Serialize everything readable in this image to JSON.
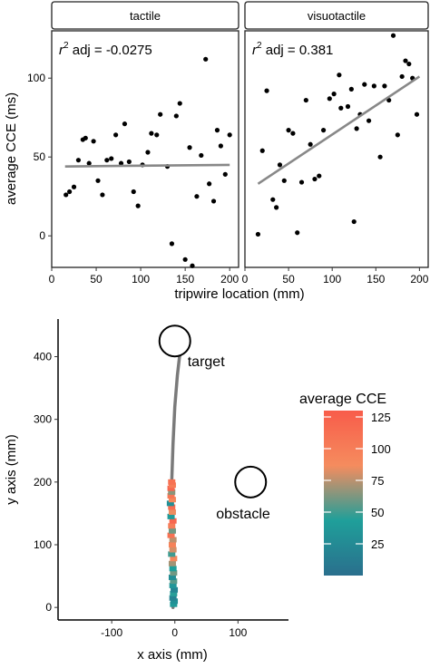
{
  "chart_data": [
    {
      "type": "scatter",
      "facet": "tactile",
      "annotation": {
        "r2_prefix": "r",
        "r2_sup": "2",
        "r2_suffix": " adj = -0.0275"
      },
      "xlabel": "tripwire location (mm)",
      "ylabel": "average CCE (ms)",
      "xlim": [
        0,
        210
      ],
      "ylim": [
        -20,
        130
      ],
      "xticks": [
        0,
        50,
        100,
        150,
        200
      ],
      "yticks": [
        0,
        50,
        100
      ],
      "points": [
        [
          16,
          26
        ],
        [
          20,
          28
        ],
        [
          25,
          31
        ],
        [
          30,
          48
        ],
        [
          35,
          61
        ],
        [
          38,
          62
        ],
        [
          42,
          46
        ],
        [
          47,
          60
        ],
        [
          52,
          35
        ],
        [
          57,
          26
        ],
        [
          62,
          48
        ],
        [
          67,
          49
        ],
        [
          72,
          64
        ],
        [
          78,
          46
        ],
        [
          82,
          71
        ],
        [
          87,
          47
        ],
        [
          92,
          28
        ],
        [
          97,
          19
        ],
        [
          102,
          45
        ],
        [
          108,
          53
        ],
        [
          112,
          65
        ],
        [
          118,
          64
        ],
        [
          122,
          77
        ],
        [
          130,
          44
        ],
        [
          135,
          -5
        ],
        [
          140,
          76
        ],
        [
          144,
          84
        ],
        [
          150,
          -15
        ],
        [
          155,
          56
        ],
        [
          158,
          -19
        ],
        [
          163,
          25
        ],
        [
          168,
          51
        ],
        [
          173,
          112
        ],
        [
          177,
          33
        ],
        [
          182,
          22
        ],
        [
          186,
          67
        ],
        [
          190,
          57
        ],
        [
          195,
          39
        ],
        [
          200,
          64
        ]
      ],
      "fit": [
        [
          15,
          44
        ],
        [
          200,
          45
        ]
      ]
    },
    {
      "type": "scatter",
      "facet": "visuotactile",
      "annotation": {
        "r2_prefix": "r",
        "r2_sup": "2",
        "r2_suffix": " adj = 0.381"
      },
      "xlabel": "tripwire location (mm)",
      "xlim": [
        0,
        210
      ],
      "ylim": [
        -20,
        130
      ],
      "xticks": [
        0,
        50,
        100,
        150,
        200
      ],
      "points": [
        [
          15,
          1
        ],
        [
          20,
          54
        ],
        [
          25,
          92
        ],
        [
          32,
          23
        ],
        [
          36,
          18
        ],
        [
          40,
          45
        ],
        [
          45,
          35
        ],
        [
          50,
          67
        ],
        [
          55,
          65
        ],
        [
          60,
          2
        ],
        [
          65,
          34
        ],
        [
          70,
          86
        ],
        [
          75,
          58
        ],
        [
          80,
          36
        ],
        [
          85,
          38
        ],
        [
          90,
          67
        ],
        [
          97,
          87
        ],
        [
          102,
          90
        ],
        [
          108,
          102
        ],
        [
          110,
          81
        ],
        [
          118,
          82
        ],
        [
          122,
          93
        ],
        [
          125,
          9
        ],
        [
          128,
          68
        ],
        [
          132,
          77
        ],
        [
          137,
          96
        ],
        [
          142,
          73
        ],
        [
          148,
          95
        ],
        [
          155,
          50
        ],
        [
          160,
          95
        ],
        [
          165,
          86
        ],
        [
          170,
          127
        ],
        [
          175,
          64
        ],
        [
          180,
          101
        ],
        [
          184,
          111
        ],
        [
          188,
          109
        ],
        [
          192,
          100
        ],
        [
          197,
          77
        ]
      ],
      "fit": [
        [
          15,
          33
        ],
        [
          200,
          101
        ]
      ]
    },
    {
      "type": "line",
      "xlabel": "x axis (mm)",
      "ylabel": "y axis (mm)",
      "xlim": [
        -185,
        180
      ],
      "ylim": [
        -20,
        460
      ],
      "xticks": [
        -100,
        0,
        100
      ],
      "yticks": [
        0,
        100,
        200,
        300,
        400
      ],
      "legend": {
        "title": "average CCE",
        "ticks": [
          25,
          50,
          75,
          100,
          125
        ],
        "range": [
          0,
          130
        ],
        "colors": [
          "#2a6f8d",
          "#1f9f9a",
          "#f58c5e",
          "#f85c4a"
        ]
      },
      "target": {
        "label": "target",
        "x": 0,
        "y": 425,
        "r": 17
      },
      "obstacle": {
        "label": "obstacle",
        "x": 120,
        "y": 200,
        "r": 17
      },
      "trajectory_line": [
        [
          -3,
          0
        ],
        [
          -4,
          100
        ],
        [
          -5,
          200
        ],
        [
          -3,
          260
        ],
        [
          0,
          320
        ],
        [
          4,
          370
        ],
        [
          8,
          405
        ]
      ],
      "trajectory_points": [
        [
          -2,
          5,
          40
        ],
        [
          -1,
          10,
          30
        ],
        [
          -3,
          15,
          18
        ],
        [
          -2,
          22,
          45
        ],
        [
          -1,
          28,
          20
        ],
        [
          -3,
          35,
          35
        ],
        [
          -2,
          42,
          55
        ],
        [
          -4,
          48,
          28
        ],
        [
          -2,
          55,
          60
        ],
        [
          -3,
          62,
          42
        ],
        [
          -4,
          70,
          70
        ],
        [
          -2,
          78,
          90
        ],
        [
          -5,
          85,
          50
        ],
        [
          -3,
          92,
          80
        ],
        [
          -4,
          100,
          95
        ],
        [
          -3,
          108,
          75
        ],
        [
          -6,
          115,
          110
        ],
        [
          -4,
          122,
          60
        ],
        [
          -5,
          130,
          100
        ],
        [
          -3,
          138,
          120
        ],
        [
          -6,
          145,
          40
        ],
        [
          -4,
          152,
          85
        ],
        [
          -5,
          160,
          115
        ],
        [
          -7,
          166,
          30
        ],
        [
          -4,
          172,
          90
        ],
        [
          -6,
          178,
          105
        ],
        [
          -5,
          184,
          65
        ],
        [
          -6,
          190,
          120
        ],
        [
          -4,
          195,
          100
        ],
        [
          -5,
          200,
          110
        ]
      ]
    }
  ]
}
